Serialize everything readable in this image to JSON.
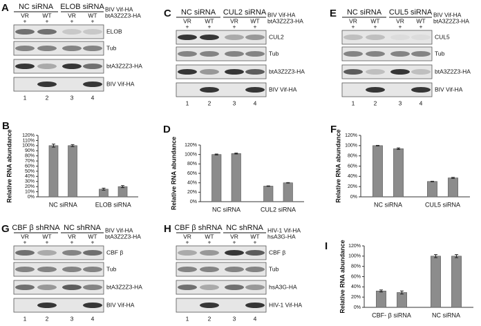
{
  "blots": [
    {
      "label": "A",
      "groups": [
        "NC siRNA",
        "ELOB siRNA"
      ],
      "lanes": [
        "VR",
        "WT",
        "VR",
        "WT"
      ],
      "treatments": [
        "+",
        "+",
        "+",
        "+"
      ],
      "conditions": [
        "BIV Vif-HA",
        "btA3Z2Z3-HA"
      ],
      "strips": [
        "ELOB",
        "Tub",
        "btA3Z2Z3-HA",
        "BIV Vif-HA"
      ],
      "lane_numbers": [
        1,
        2,
        3,
        4
      ]
    },
    {
      "label": "C",
      "groups": [
        "NC siRNA",
        "CUL2 siRNA"
      ],
      "lanes": [
        "VR",
        "WT",
        "VR",
        "WT"
      ],
      "treatments": [
        "+",
        "+",
        "+",
        "+"
      ],
      "conditions": [
        "BIV Vif-HA",
        "btA3Z2Z3-HA"
      ],
      "strips": [
        "CUL2",
        "Tub",
        "btA3Z2Z3-HA",
        "BIV Vif-HA"
      ],
      "lane_numbers": [
        1,
        2,
        3,
        4
      ]
    },
    {
      "label": "E",
      "groups": [
        "NC siRNA",
        "CUL5 siRNA"
      ],
      "lanes": [
        "VR",
        "WT",
        "VR",
        "WT"
      ],
      "treatments": [
        "+",
        "+",
        "+",
        "+"
      ],
      "conditions": [
        "BIV Vif-HA",
        "btA3Z2Z3-HA"
      ],
      "strips": [
        "CUL5",
        "Tub",
        "btA3Z2Z3-HA",
        "BIV Vif-HA"
      ],
      "lane_numbers": [
        1,
        2,
        3,
        4
      ]
    },
    {
      "label": "G",
      "groups": [
        "CBF β shRNA",
        "NC shRNA"
      ],
      "lanes": [
        "VR",
        "WT",
        "VR",
        "WT"
      ],
      "treatments": [
        "+",
        "+",
        "+",
        "+"
      ],
      "conditions": [
        "BIV Vif-HA",
        "btA3Z2Z3-HA"
      ],
      "strips": [
        "CBF β",
        "Tub",
        "btA3Z2Z3-HA",
        "BIV Vif-HA"
      ],
      "lane_numbers": [
        1,
        2,
        3,
        4
      ]
    },
    {
      "label": "H",
      "groups": [
        "CBF β shRNA",
        "NC shRNA"
      ],
      "lanes": [
        "VR",
        "WT",
        "VR",
        "WT"
      ],
      "treatments": [
        "+",
        "+",
        "+",
        "+"
      ],
      "conditions": [
        "HIV-1 Vif-HA",
        "hsA3G-HA"
      ],
      "strips": [
        "CBF β",
        "Tub",
        "hsA3G-HA",
        "HIV-1 Vif-HA"
      ],
      "lane_numbers": [
        1,
        2,
        3,
        4
      ]
    }
  ],
  "chart_data": [
    {
      "type": "bar",
      "panel_label": "B",
      "y_label": "Relative RNA abundance",
      "categories": [
        "NC siRNA",
        null,
        "ELOB siRNA",
        null
      ],
      "values": [
        100,
        100,
        15,
        20
      ],
      "errors": [
        3,
        2,
        2,
        2
      ],
      "color": "#8c8c8c",
      "ylim": [
        0,
        120
      ],
      "yticks": [
        {
          "value": 0,
          "label": "0%"
        },
        {
          "value": 10,
          "label": "10%"
        },
        {
          "value": 20,
          "label": "20%"
        },
        {
          "value": 30,
          "label": "30%"
        },
        {
          "value": 40,
          "label": "40%"
        },
        {
          "value": 50,
          "label": "50%"
        },
        {
          "value": 60,
          "label": "60%"
        },
        {
          "value": 70,
          "label": "70%"
        },
        {
          "value": 80,
          "label": "80%"
        },
        {
          "value": 90,
          "label": "90%"
        },
        {
          "value": 100,
          "label": "100%"
        },
        {
          "value": 110,
          "label": "110%"
        },
        {
          "value": 120,
          "label": "120%"
        }
      ]
    },
    {
      "type": "bar",
      "panel_label": "D",
      "y_label": "Relative RNA abundance",
      "categories": [
        "NC siRNA",
        null,
        "CUL2 siRNA",
        null
      ],
      "values": [
        100,
        102,
        33,
        40
      ],
      "errors": [
        1,
        1,
        0.5,
        0.5
      ],
      "color": "#8c8c8c",
      "ylim": [
        0,
        120
      ],
      "yticks": [
        {
          "value": 0,
          "label": "0%"
        },
        {
          "value": 20,
          "label": "20%"
        },
        {
          "value": 40,
          "label": "40%"
        },
        {
          "value": 60,
          "label": "60%"
        },
        {
          "value": 80,
          "label": "80%"
        },
        {
          "value": 100,
          "label": "100%"
        },
        {
          "value": 120,
          "label": "120%"
        }
      ]
    },
    {
      "type": "bar",
      "panel_label": "F",
      "y_label": "Relative RNA abundance",
      "categories": [
        "NC siRNA",
        null,
        "CUL5 siRNA",
        null
      ],
      "values": [
        100,
        94,
        30,
        37
      ],
      "errors": [
        0.5,
        1.5,
        0.5,
        1
      ],
      "color": "#8c8c8c",
      "ylim": [
        0,
        120
      ],
      "yticks": [
        {
          "value": 0,
          "label": "0%"
        },
        {
          "value": 20,
          "label": "20%"
        },
        {
          "value": 40,
          "label": "40%"
        },
        {
          "value": 60,
          "label": "60%"
        },
        {
          "value": 80,
          "label": "80%"
        },
        {
          "value": 100,
          "label": "100%"
        },
        {
          "value": 120,
          "label": "120%"
        }
      ]
    },
    {
      "type": "bar",
      "panel_label": "I",
      "y_label": "Relative RNA abundance",
      "categories": [
        "CBF- β  siRNA",
        null,
        "NC siRNA",
        null
      ],
      "values": [
        32,
        29,
        100,
        100
      ],
      "errors": [
        2,
        3,
        3,
        3
      ],
      "color": "#8c8c8c",
      "ylim": [
        0,
        120
      ],
      "yticks": [
        {
          "value": 0,
          "label": "0%"
        },
        {
          "value": 20,
          "label": "20%"
        },
        {
          "value": 40,
          "label": "40%"
        },
        {
          "value": 60,
          "label": "60%"
        },
        {
          "value": 80,
          "label": "80%"
        },
        {
          "value": 100,
          "label": "100%"
        },
        {
          "value": 120,
          "label": "120%"
        }
      ]
    }
  ]
}
